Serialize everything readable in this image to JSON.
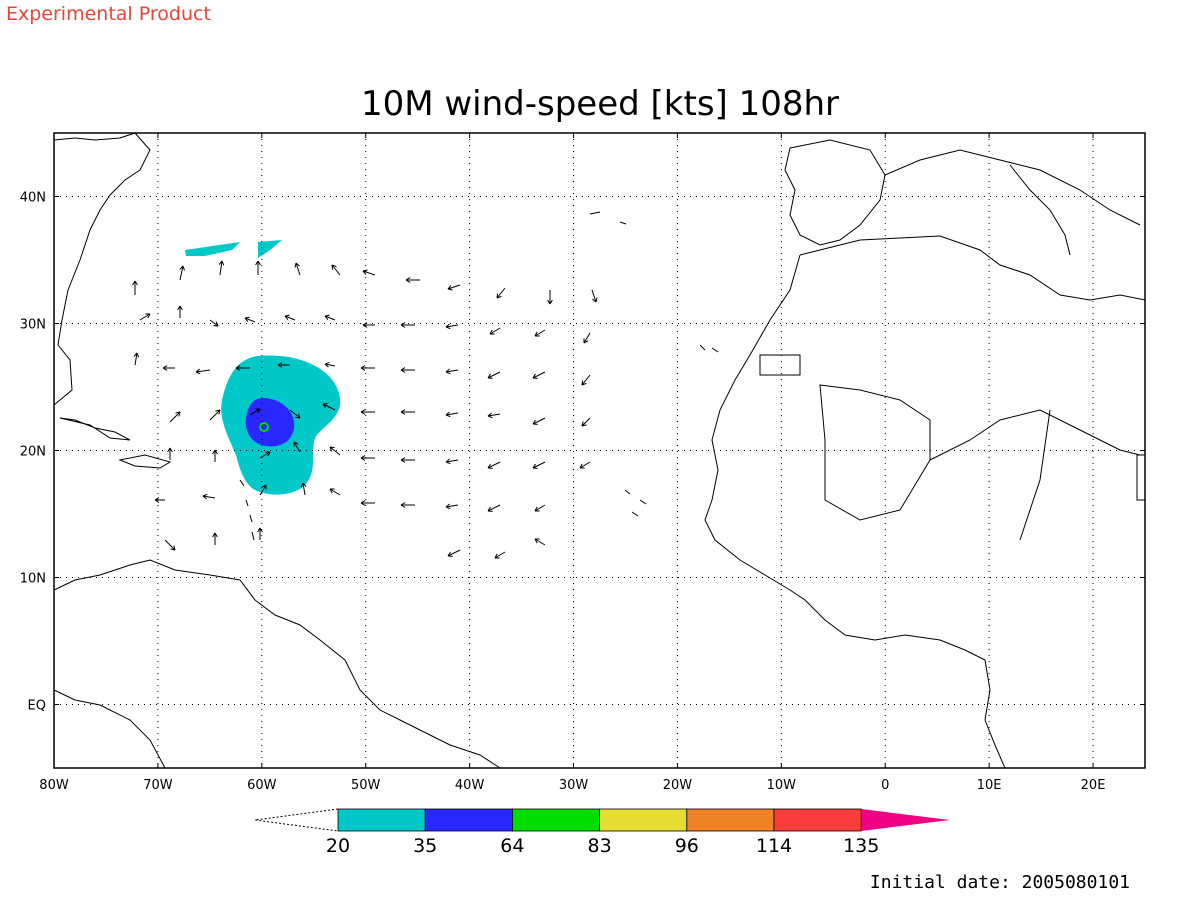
{
  "header": {
    "product_label": "Experimental Product",
    "title": "10M wind-speed [kts] 108hr"
  },
  "map": {
    "extent": {
      "lon_min": -80,
      "lon_max": 25,
      "lat_min": -5,
      "lat_max": 45
    },
    "lon_ticks": [
      {
        "lon": -80,
        "label": "80W"
      },
      {
        "lon": -70,
        "label": "70W"
      },
      {
        "lon": -60,
        "label": "60W"
      },
      {
        "lon": -50,
        "label": "50W"
      },
      {
        "lon": -40,
        "label": "40W"
      },
      {
        "lon": -30,
        "label": "30W"
      },
      {
        "lon": -20,
        "label": "20W"
      },
      {
        "lon": -10,
        "label": "10W"
      },
      {
        "lon": 0,
        "label": "0"
      },
      {
        "lon": 10,
        "label": "10E"
      },
      {
        "lon": 20,
        "label": "20E"
      }
    ],
    "lat_ticks": [
      {
        "lat": 40,
        "label": "40N"
      },
      {
        "lat": 30,
        "label": "30N"
      },
      {
        "lat": 20,
        "label": "20N"
      },
      {
        "lat": 10,
        "label": "10N"
      },
      {
        "lat": 0,
        "label": "EQ"
      }
    ],
    "grid": "dotted",
    "storm_center": {
      "lon": -60,
      "lat": 22
    },
    "wind_vectors_kts_dir": "arrows show 10m wind direction"
  },
  "colorbar": {
    "unit": "kts",
    "labels": [
      "20",
      "35",
      "64",
      "83",
      "96",
      "114",
      "135"
    ],
    "colors": [
      "#00c8c8",
      "#2828ff",
      "#00dc00",
      "#e6dc32",
      "#f08228",
      "#fa3c3c",
      "#f00082"
    ]
  },
  "footer": {
    "initial_date": "Initial date: 2005080101"
  }
}
